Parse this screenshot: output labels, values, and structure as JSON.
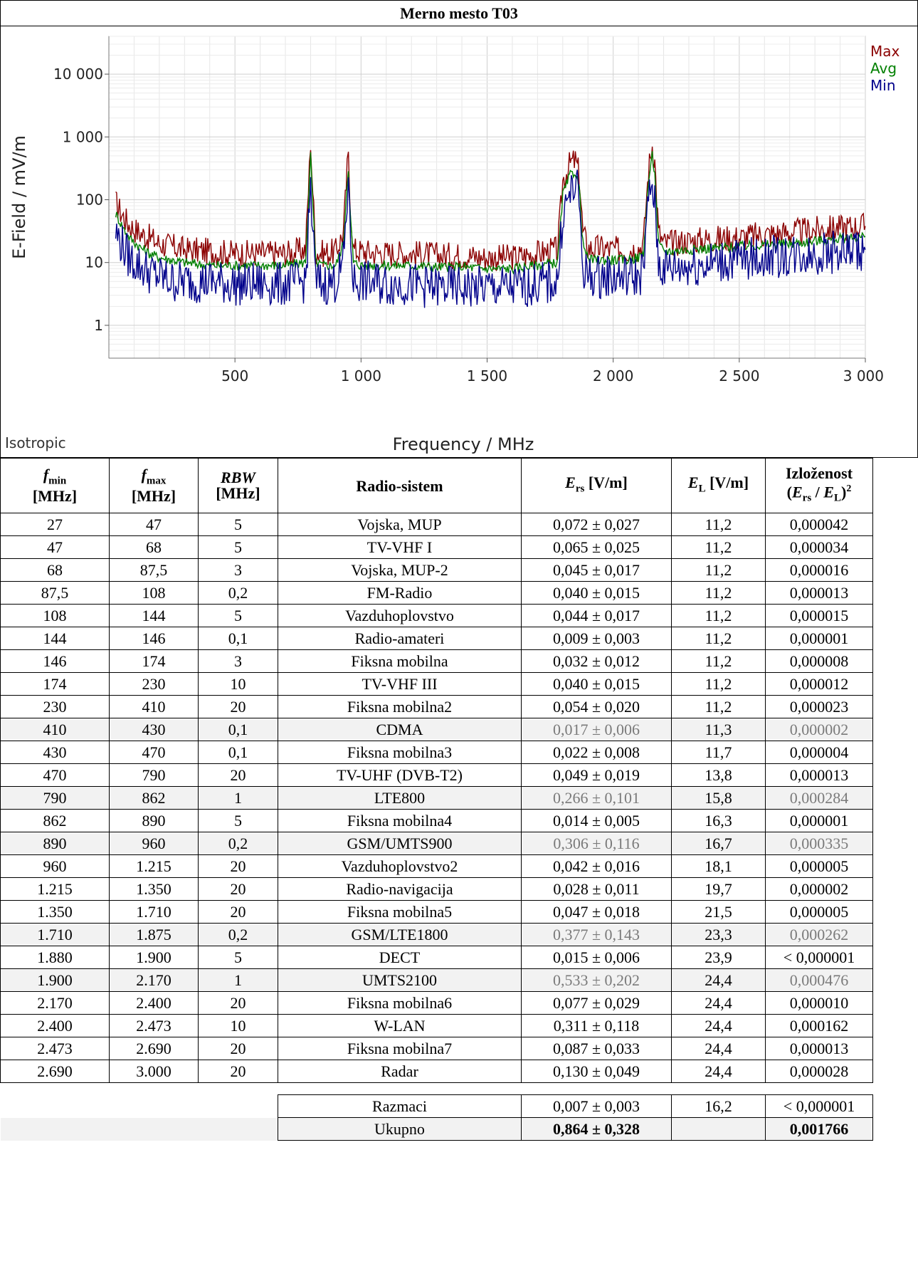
{
  "title": "Merno mesto T03",
  "chart_data": {
    "type": "line",
    "xlabel": "Frequency / MHz",
    "ylabel": "E-Field / mV/m",
    "corner_label": "Isotropic",
    "y_scale": "log",
    "ylim": [
      0.3,
      40000
    ],
    "xlim": [
      27,
      3000
    ],
    "x_ticks": [
      500,
      1000,
      1500,
      2000,
      2500,
      3000
    ],
    "x_tick_labels": [
      "500",
      "1 000",
      "1 500",
      "2 000",
      "2 500",
      "3 000"
    ],
    "y_ticks": [
      1,
      10,
      100,
      1000,
      10000
    ],
    "y_tick_labels": [
      "1",
      "10",
      "100",
      "1 000",
      "10 000"
    ],
    "grid": true,
    "legend_position": "top-right",
    "series": [
      {
        "name": "Max",
        "color": "#8b0000",
        "x": [
          27,
          50,
          80,
          120,
          160,
          200,
          250,
          300,
          400,
          500,
          600,
          700,
          780,
          795,
          800,
          805,
          820,
          850,
          900,
          930,
          945,
          950,
          955,
          970,
          1000,
          1100,
          1200,
          1300,
          1400,
          1500,
          1600,
          1700,
          1780,
          1800,
          1830,
          1850,
          1865,
          1880,
          1900,
          1950,
          2000,
          2050,
          2100,
          2120,
          2140,
          2155,
          2165,
          2180,
          2200,
          2300,
          2400,
          2500,
          2600,
          2700,
          2800,
          2900,
          3000
        ],
        "y": [
          90,
          60,
          40,
          30,
          25,
          20,
          18,
          16,
          15,
          14,
          14,
          14,
          16,
          300,
          900,
          300,
          15,
          14,
          15,
          30,
          300,
          450,
          120,
          16,
          15,
          14,
          14,
          13,
          13,
          12,
          12,
          14,
          16,
          200,
          380,
          420,
          260,
          30,
          17,
          17,
          16,
          16,
          17,
          20,
          300,
          750,
          400,
          30,
          20,
          22,
          24,
          25,
          28,
          30,
          33,
          36,
          38
        ]
      },
      {
        "name": "Avg",
        "color": "#008000",
        "x": [
          27,
          50,
          80,
          120,
          160,
          200,
          250,
          300,
          400,
          500,
          600,
          700,
          780,
          795,
          800,
          805,
          820,
          850,
          900,
          930,
          945,
          950,
          955,
          970,
          1000,
          1100,
          1200,
          1300,
          1400,
          1500,
          1600,
          1700,
          1780,
          1800,
          1830,
          1850,
          1865,
          1880,
          1900,
          1950,
          2000,
          2050,
          2100,
          2120,
          2140,
          2155,
          2165,
          2180,
          2200,
          2300,
          2400,
          2500,
          2600,
          2700,
          2800,
          2900,
          3000
        ],
        "y": [
          60,
          40,
          25,
          18,
          14,
          12,
          11,
          10,
          9,
          9,
          9,
          9,
          10,
          180,
          500,
          180,
          10,
          9,
          9,
          20,
          200,
          330,
          80,
          10,
          9,
          9,
          9,
          8.5,
          8.5,
          8,
          8,
          9,
          10,
          120,
          250,
          280,
          160,
          20,
          11,
          11,
          11,
          11,
          12,
          14,
          200,
          500,
          250,
          20,
          15,
          16,
          17,
          18,
          19,
          20,
          22,
          24,
          26
        ]
      },
      {
        "name": "Min",
        "color": "#00008b",
        "x": [
          27,
          50,
          80,
          120,
          160,
          200,
          250,
          300,
          400,
          500,
          600,
          700,
          780,
          795,
          800,
          805,
          820,
          850,
          900,
          930,
          945,
          950,
          955,
          970,
          1000,
          1100,
          1200,
          1300,
          1400,
          1500,
          1600,
          1700,
          1780,
          1800,
          1830,
          1850,
          1865,
          1880,
          1900,
          1950,
          2000,
          2050,
          2100,
          2120,
          2140,
          2155,
          2165,
          2180,
          2200,
          2300,
          2400,
          2500,
          2600,
          2700,
          2800,
          2900,
          3000
        ],
        "y": [
          30,
          20,
          12,
          9,
          7,
          6,
          5,
          5,
          5,
          4.5,
          4.5,
          4.5,
          5,
          60,
          200,
          60,
          5,
          4.5,
          5,
          10,
          100,
          250,
          40,
          5,
          5,
          4.5,
          4.5,
          4,
          4,
          4,
          4,
          4.5,
          5,
          60,
          120,
          180,
          100,
          8,
          6,
          6,
          6,
          6,
          6,
          8,
          100,
          180,
          80,
          10,
          8,
          9,
          10,
          11,
          12,
          13,
          14,
          15,
          16
        ]
      }
    ]
  },
  "table": {
    "headers": {
      "fmin": "f",
      "fmin_sub": "min",
      "fmin_unit": "[MHz]",
      "fmax": "f",
      "fmax_sub": "max",
      "fmax_unit": "[MHz]",
      "rbw": "RBW",
      "rbw_unit": "[MHz]",
      "system": "Radio-sistem",
      "ers": "E",
      "ers_sub": "rs",
      "ers_unit": " [V/m]",
      "el": "E",
      "el_sub": "L",
      "el_unit": " [V/m]",
      "exp": "Izloženost",
      "exp_formula_open": "(",
      "exp_e1": "E",
      "exp_s1": "rs",
      "exp_div": " / ",
      "exp_e2": "E",
      "exp_s2": "L",
      "exp_close": ")",
      "exp_pow": "2"
    },
    "rows": [
      {
        "fmin": "27",
        "fmax": "47",
        "rbw": "5",
        "system": "Vojska, MUP",
        "ers": "0,072 ± 0,027",
        "el": "11,2",
        "exp": "0,000042",
        "shade": false
      },
      {
        "fmin": "47",
        "fmax": "68",
        "rbw": "5",
        "system": "TV-VHF I",
        "ers": "0,065 ± 0,025",
        "el": "11,2",
        "exp": "0,000034",
        "shade": false
      },
      {
        "fmin": "68",
        "fmax": "87,5",
        "rbw": "3",
        "system": "Vojska, MUP-2",
        "ers": "0,045 ± 0,017",
        "el": "11,2",
        "exp": "0,000016",
        "shade": false
      },
      {
        "fmin": "87,5",
        "fmax": "108",
        "rbw": "0,2",
        "system": "FM-Radio",
        "ers": "0,040 ± 0,015",
        "el": "11,2",
        "exp": "0,000013",
        "shade": false
      },
      {
        "fmin": "108",
        "fmax": "144",
        "rbw": "5",
        "system": "Vazduhoplovstvo",
        "ers": "0,044 ± 0,017",
        "el": "11,2",
        "exp": "0,000015",
        "shade": false
      },
      {
        "fmin": "144",
        "fmax": "146",
        "rbw": "0,1",
        "system": "Radio-amateri",
        "ers": "0,009 ± 0,003",
        "el": "11,2",
        "exp": "0,000001",
        "shade": false
      },
      {
        "fmin": "146",
        "fmax": "174",
        "rbw": "3",
        "system": "Fiksna mobilna",
        "ers": "0,032 ± 0,012",
        "el": "11,2",
        "exp": "0,000008",
        "shade": false
      },
      {
        "fmin": "174",
        "fmax": "230",
        "rbw": "10",
        "system": "TV-VHF III",
        "ers": "0,040 ± 0,015",
        "el": "11,2",
        "exp": "0,000012",
        "shade": false
      },
      {
        "fmin": "230",
        "fmax": "410",
        "rbw": "20",
        "system": "Fiksna mobilna2",
        "ers": "0,054 ± 0,020",
        "el": "11,2",
        "exp": "0,000023",
        "shade": false
      },
      {
        "fmin": "410",
        "fmax": "430",
        "rbw": "0,1",
        "system": "CDMA",
        "ers": "0,017 ± 0,006",
        "el": "11,3",
        "exp": "0,000002",
        "shade": true
      },
      {
        "fmin": "430",
        "fmax": "470",
        "rbw": "0,1",
        "system": "Fiksna mobilna3",
        "ers": "0,022 ± 0,008",
        "el": "11,7",
        "exp": "0,000004",
        "shade": false
      },
      {
        "fmin": "470",
        "fmax": "790",
        "rbw": "20",
        "system": "TV-UHF (DVB-T2)",
        "ers": "0,049 ± 0,019",
        "el": "13,8",
        "exp": "0,000013",
        "shade": false
      },
      {
        "fmin": "790",
        "fmax": "862",
        "rbw": "1",
        "system": "LTE800",
        "ers": "0,266 ± 0,101",
        "el": "15,8",
        "exp": "0,000284",
        "shade": true
      },
      {
        "fmin": "862",
        "fmax": "890",
        "rbw": "5",
        "system": "Fiksna mobilna4",
        "ers": "0,014 ± 0,005",
        "el": "16,3",
        "exp": "0,000001",
        "shade": false
      },
      {
        "fmin": "890",
        "fmax": "960",
        "rbw": "0,2",
        "system": "GSM/UMTS900",
        "ers": "0,306 ± 0,116",
        "el": "16,7",
        "exp": "0,000335",
        "shade": true
      },
      {
        "fmin": "960",
        "fmax": "1.215",
        "rbw": "20",
        "system": "Vazduhoplovstvo2",
        "ers": "0,042 ± 0,016",
        "el": "18,1",
        "exp": "0,000005",
        "shade": false
      },
      {
        "fmin": "1.215",
        "fmax": "1.350",
        "rbw": "20",
        "system": "Radio-navigacija",
        "ers": "0,028 ± 0,011",
        "el": "19,7",
        "exp": "0,000002",
        "shade": false
      },
      {
        "fmin": "1.350",
        "fmax": "1.710",
        "rbw": "20",
        "system": "Fiksna mobilna5",
        "ers": "0,047 ± 0,018",
        "el": "21,5",
        "exp": "0,000005",
        "shade": false
      },
      {
        "fmin": "1.710",
        "fmax": "1.875",
        "rbw": "0,2",
        "system": "GSM/LTE1800",
        "ers": "0,377 ± 0,143",
        "el": "23,3",
        "exp": "0,000262",
        "shade": true
      },
      {
        "fmin": "1.880",
        "fmax": "1.900",
        "rbw": "5",
        "system": "DECT",
        "ers": "0,015 ± 0,006",
        "el": "23,9",
        "exp": "< 0,000001",
        "shade": false
      },
      {
        "fmin": "1.900",
        "fmax": "2.170",
        "rbw": "1",
        "system": "UMTS2100",
        "ers": "0,533 ± 0,202",
        "el": "24,4",
        "exp": "0,000476",
        "shade": true
      },
      {
        "fmin": "2.170",
        "fmax": "2.400",
        "rbw": "20",
        "system": "Fiksna mobilna6",
        "ers": "0,077 ± 0,029",
        "el": "24,4",
        "exp": "0,000010",
        "shade": false
      },
      {
        "fmin": "2.400",
        "fmax": "2.473",
        "rbw": "10",
        "system": "W-LAN",
        "ers": "0,311 ± 0,118",
        "el": "24,4",
        "exp": "0,000162",
        "shade": false
      },
      {
        "fmin": "2.473",
        "fmax": "2.690",
        "rbw": "20",
        "system": "Fiksna mobilna7",
        "ers": "0,087 ± 0,033",
        "el": "24,4",
        "exp": "0,000013",
        "shade": false
      },
      {
        "fmin": "2.690",
        "fmax": "3.000",
        "rbw": "20",
        "system": "Radar",
        "ers": "0,130 ± 0,049",
        "el": "24,4",
        "exp": "0,000028",
        "shade": false
      }
    ],
    "gaps": {
      "label": "Razmaci",
      "ers": "0,007 ± 0,003",
      "el": "16,2",
      "exp": "< 0,000001"
    },
    "total": {
      "label": "Ukupno",
      "ers": "0,864 ± 0,328",
      "exp": "0,001766"
    }
  }
}
